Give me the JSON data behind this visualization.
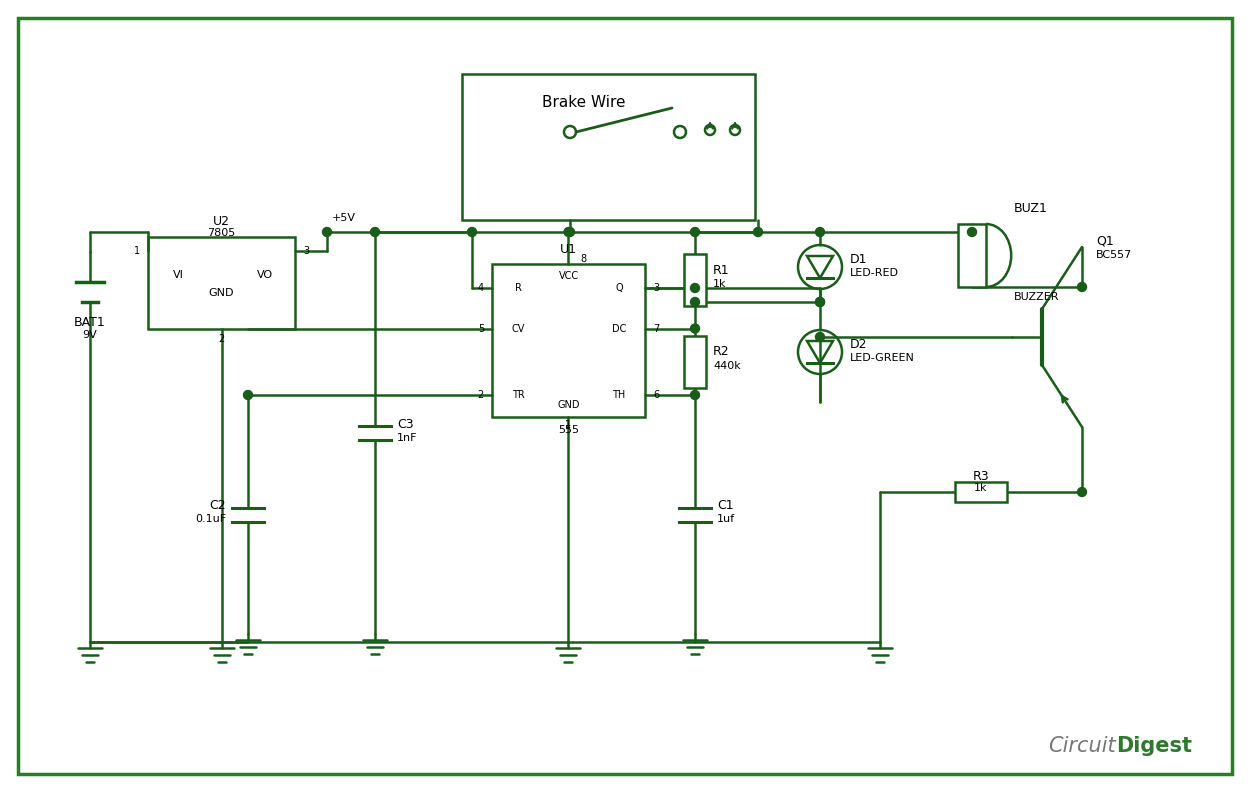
{
  "bg_color": "#ffffff",
  "border_color": "#2d7a2d",
  "line_color": "#1a5c1a",
  "node_color": "#1a5c1a",
  "watermark_1": "Circuit",
  "watermark_2": "Digest",
  "watermark_color_1": "#777777",
  "watermark_color_2": "#2d7a2d",
  "vcc_label": "+5V",
  "bat_label": "BAT1",
  "bat_val": "9V",
  "u2_label": "U2",
  "u2_val": "7805",
  "u1_label": "U1",
  "u1_val": "555",
  "c3_label": "C3",
  "c3_val": "1nF",
  "c2_label": "C2",
  "c2_val": "0.1uF",
  "c1_label": "C1",
  "c1_val": "1uf",
  "r1_label": "R1",
  "r1_val": "1k",
  "r2_label": "R2",
  "r2_val": "440k",
  "r3_label": "R3",
  "r3_val": "1k",
  "d1_label": "D1",
  "d1_val": "LED-RED",
  "d2_label": "D2",
  "d2_val": "LED-GREEN",
  "buz_label": "BUZ1",
  "buz_val": "BUZZER",
  "q1_label": "Q1",
  "q1_val": "BC557",
  "sw_label": "Brake Wire"
}
